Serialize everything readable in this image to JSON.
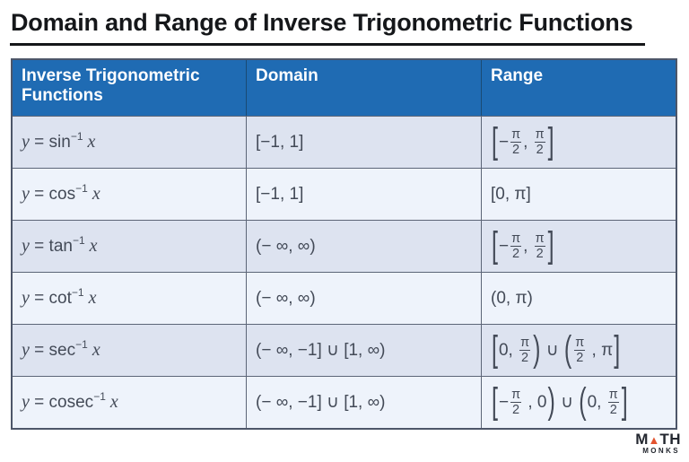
{
  "page": {
    "title": "Domain and Range of Inverse Trigonometric Functions"
  },
  "colors": {
    "header_blue": "#1f6bb3",
    "row_odd": "#dde3f0",
    "row_even": "#eef3fb",
    "border": "#5c6577",
    "logo_orange": "#e2532f"
  },
  "table": {
    "headers": [
      {
        "label": "Inverse Trigonometric Functions"
      },
      {
        "label": "Domain"
      },
      {
        "label": "Range"
      }
    ],
    "rows": [
      {
        "fn": [
          {
            "k": "i",
            "v": "y"
          },
          {
            "k": "t",
            "v": " = sin"
          },
          {
            "k": "sup",
            "v": "−1"
          },
          {
            "k": "i",
            "v": " x"
          }
        ],
        "domain": "[−1, 1]",
        "range": [
          {
            "k": "b",
            "v": "["
          },
          {
            "k": "t",
            "v": "−"
          },
          {
            "k": "f",
            "n": "π",
            "d": "2"
          },
          {
            "k": "t",
            "v": ", "
          },
          {
            "k": "f",
            "n": "π",
            "d": "2"
          },
          {
            "k": "b",
            "v": "]"
          }
        ]
      },
      {
        "fn": [
          {
            "k": "i",
            "v": "y"
          },
          {
            "k": "t",
            "v": " = cos"
          },
          {
            "k": "sup",
            "v": "−1"
          },
          {
            "k": "i",
            "v": " x"
          }
        ],
        "domain": "[−1, 1]",
        "range": [
          {
            "k": "t",
            "v": "[0, π]"
          }
        ]
      },
      {
        "fn": [
          {
            "k": "i",
            "v": "y"
          },
          {
            "k": "t",
            "v": " = tan"
          },
          {
            "k": "sup",
            "v": "−1"
          },
          {
            "k": "i",
            "v": " x"
          }
        ],
        "domain": "(− ∞, ∞)",
        "range": [
          {
            "k": "b",
            "v": "["
          },
          {
            "k": "t",
            "v": "−"
          },
          {
            "k": "f",
            "n": "π",
            "d": "2"
          },
          {
            "k": "t",
            "v": ", "
          },
          {
            "k": "f",
            "n": "π",
            "d": "2"
          },
          {
            "k": "b",
            "v": "]"
          }
        ]
      },
      {
        "fn": [
          {
            "k": "i",
            "v": "y"
          },
          {
            "k": "t",
            "v": " = cot"
          },
          {
            "k": "sup",
            "v": "−1"
          },
          {
            "k": "i",
            "v": " x"
          }
        ],
        "domain": "(− ∞, ∞)",
        "range": [
          {
            "k": "t",
            "v": "(0, π)"
          }
        ]
      },
      {
        "fn": [
          {
            "k": "i",
            "v": "y"
          },
          {
            "k": "t",
            "v": " = sec"
          },
          {
            "k": "sup",
            "v": "−1"
          },
          {
            "k": "i",
            "v": " x"
          }
        ],
        "domain": "(− ∞, −1] ∪ [1, ∞)",
        "range": [
          {
            "k": "b",
            "v": "["
          },
          {
            "k": "t",
            "v": "0, "
          },
          {
            "k": "f",
            "n": "π",
            "d": "2"
          },
          {
            "k": "b",
            "v": ")"
          },
          {
            "k": "t",
            "v": " ∪ "
          },
          {
            "k": "b",
            "v": "("
          },
          {
            "k": "f",
            "n": "π",
            "d": "2"
          },
          {
            "k": "t",
            "v": " , π"
          },
          {
            "k": "b",
            "v": "]"
          }
        ]
      },
      {
        "fn": [
          {
            "k": "i",
            "v": "y"
          },
          {
            "k": "t",
            "v": " = cosec"
          },
          {
            "k": "sup",
            "v": "−1"
          },
          {
            "k": "i",
            "v": " x"
          }
        ],
        "domain": "(− ∞, −1] ∪ [1, ∞)",
        "range": [
          {
            "k": "b",
            "v": "["
          },
          {
            "k": "t",
            "v": "−"
          },
          {
            "k": "f",
            "n": "π",
            "d": "2"
          },
          {
            "k": "t",
            "v": " , 0"
          },
          {
            "k": "b",
            "v": ")"
          },
          {
            "k": "t",
            "v": " ∪ "
          },
          {
            "k": "b",
            "v": "("
          },
          {
            "k": "t",
            "v": "0, "
          },
          {
            "k": "f",
            "n": "π",
            "d": "2"
          },
          {
            "k": "b",
            "v": "]"
          }
        ]
      }
    ]
  },
  "logo": {
    "part1": "M",
    "triangle": "▲",
    "part2": "TH",
    "line2": "MONKS"
  }
}
